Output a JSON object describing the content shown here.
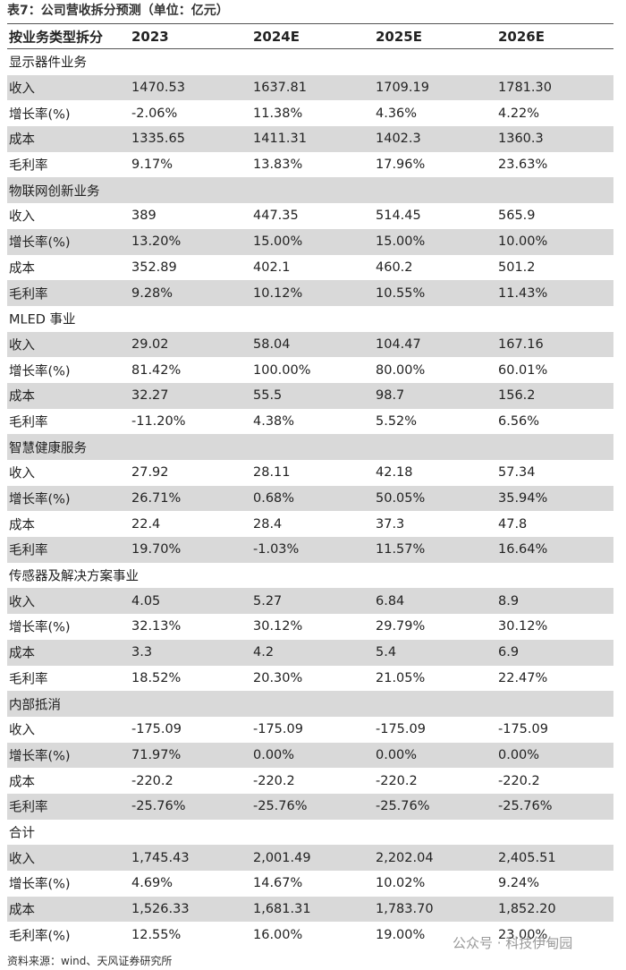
{
  "title": "表7：公司营收拆分预测（单位：亿元）",
  "table": {
    "header": [
      "按业务类型拆分",
      "2023",
      "2024E",
      "2025E",
      "2026E"
    ],
    "rows": [
      [
        "显示器件业务"
      ],
      [
        "收入",
        "1470.53",
        "1637.81",
        "1709.19",
        "1781.30"
      ],
      [
        "增长率(%)",
        "-2.06%",
        "11.38%",
        "4.36%",
        "4.22%"
      ],
      [
        "成本",
        "1335.65",
        "1411.31",
        "1402.3",
        "1360.3"
      ],
      [
        "毛利率",
        "9.17%",
        "13.83%",
        "17.96%",
        "23.63%"
      ],
      [
        "物联网创新业务"
      ],
      [
        "收入",
        "389",
        "447.35",
        "514.45",
        "565.9"
      ],
      [
        "增长率(%)",
        "13.20%",
        "15.00%",
        "15.00%",
        "10.00%"
      ],
      [
        "成本",
        "352.89",
        "402.1",
        "460.2",
        "501.2"
      ],
      [
        "毛利率",
        "9.28%",
        "10.12%",
        "10.55%",
        "11.43%"
      ],
      [
        "MLED 事业"
      ],
      [
        "收入",
        "29.02",
        "58.04",
        "104.47",
        "167.16"
      ],
      [
        "增长率(%)",
        "81.42%",
        "100.00%",
        "80.00%",
        "60.01%"
      ],
      [
        "成本",
        "32.27",
        "55.5",
        "98.7",
        "156.2"
      ],
      [
        "毛利率",
        "-11.20%",
        "4.38%",
        "5.52%",
        "6.56%"
      ],
      [
        "智慧健康服务"
      ],
      [
        "收入",
        "27.92",
        "28.11",
        "42.18",
        "57.34"
      ],
      [
        "增长率(%)",
        "26.71%",
        "0.68%",
        "50.05%",
        "35.94%"
      ],
      [
        "成本",
        "22.4",
        "28.4",
        "37.3",
        "47.8"
      ],
      [
        "毛利率",
        "19.70%",
        "-1.03%",
        "11.57%",
        "16.64%"
      ],
      [
        "传感器及解决方案事业"
      ],
      [
        "收入",
        "4.05",
        "5.27",
        "6.84",
        "8.9"
      ],
      [
        "增长率(%)",
        "32.13%",
        "30.12%",
        "29.79%",
        "30.12%"
      ],
      [
        "成本",
        "3.3",
        "4.2",
        "5.4",
        "6.9"
      ],
      [
        "毛利率",
        "18.52%",
        "20.30%",
        "21.05%",
        "22.47%"
      ],
      [
        "内部抵消"
      ],
      [
        "收入",
        "-175.09",
        "-175.09",
        "-175.09",
        "-175.09"
      ],
      [
        "增长率(%)",
        "71.97%",
        "0.00%",
        "0.00%",
        "0.00%"
      ],
      [
        "成本",
        "-220.2",
        "-220.2",
        "-220.2",
        "-220.2"
      ],
      [
        "毛利率",
        "-25.76%",
        "-25.76%",
        "-25.76%",
        "-25.76%"
      ],
      [
        "合计"
      ],
      [
        "收入",
        "1,745.43",
        "2,001.49",
        "2,202.04",
        "2,405.51"
      ],
      [
        "增长率(%)",
        "4.69%",
        "14.67%",
        "10.02%",
        "9.24%"
      ],
      [
        "成本",
        "1,526.33",
        "1,681.31",
        "1,783.70",
        "1,852.20"
      ],
      [
        "毛利率(%)",
        "12.55%",
        "16.00%",
        "19.00%",
        "23.00%"
      ]
    ]
  },
  "source": "资料来源：wind、天风证券研究所",
  "watermark": "公众号 · 科技伊甸园"
}
